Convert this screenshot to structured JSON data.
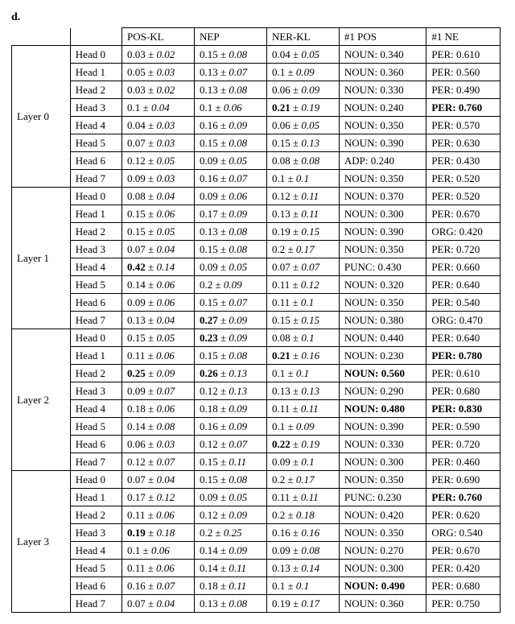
{
  "sectionLabel": "d.",
  "headers": {
    "poskl": "POS-KL",
    "nep": "NEP",
    "nerkl": "NER-KL",
    "pos1": "#1 POS",
    "ne1": "#1 NE"
  },
  "layers": [
    {
      "name": "Layer 0",
      "rows": [
        {
          "head": "Head 0",
          "poskl": {
            "m": "0.03",
            "s": "0.02",
            "mb": false
          },
          "nep": {
            "m": "0.15",
            "s": "0.08",
            "mb": false
          },
          "nerkl": {
            "m": "0.04",
            "s": "0.05",
            "mb": false
          },
          "pos": {
            "t": "NOUN",
            "v": "0.340",
            "b": false
          },
          "ne": {
            "t": "PER",
            "v": "0.610",
            "b": false
          }
        },
        {
          "head": "Head 1",
          "poskl": {
            "m": "0.05",
            "s": "0.03",
            "mb": false
          },
          "nep": {
            "m": "0.13",
            "s": "0.07",
            "mb": false
          },
          "nerkl": {
            "m": "0.1",
            "s": "0.09",
            "mb": false
          },
          "pos": {
            "t": "NOUN",
            "v": "0.360",
            "b": false
          },
          "ne": {
            "t": "PER",
            "v": "0.560",
            "b": false
          }
        },
        {
          "head": "Head 2",
          "poskl": {
            "m": "0.03",
            "s": "0.02",
            "mb": false
          },
          "nep": {
            "m": "0.13",
            "s": "0.08",
            "mb": false
          },
          "nerkl": {
            "m": "0.06",
            "s": "0.09",
            "mb": false
          },
          "pos": {
            "t": "NOUN",
            "v": "0.330",
            "b": false
          },
          "ne": {
            "t": "PER",
            "v": "0.490",
            "b": false
          }
        },
        {
          "head": "Head 3",
          "poskl": {
            "m": "0.1",
            "s": "0.04",
            "mb": false
          },
          "nep": {
            "m": "0.1",
            "s": "0.06",
            "mb": false
          },
          "nerkl": {
            "m": "0.21",
            "s": "0.19",
            "mb": true
          },
          "pos": {
            "t": "NOUN",
            "v": "0.240",
            "b": false
          },
          "ne": {
            "t": "PER",
            "v": "0.760",
            "b": true
          }
        },
        {
          "head": "Head 4",
          "poskl": {
            "m": "0.04",
            "s": "0.03",
            "mb": false
          },
          "nep": {
            "m": "0.16",
            "s": "0.09",
            "mb": false
          },
          "nerkl": {
            "m": "0.06",
            "s": "0.05",
            "mb": false
          },
          "pos": {
            "t": "NOUN",
            "v": "0.350",
            "b": false
          },
          "ne": {
            "t": "PER",
            "v": "0.570",
            "b": false
          }
        },
        {
          "head": "Head 5",
          "poskl": {
            "m": "0.07",
            "s": "0.03",
            "mb": false
          },
          "nep": {
            "m": "0.15",
            "s": "0.08",
            "mb": false
          },
          "nerkl": {
            "m": "0.15",
            "s": "0.13",
            "mb": false
          },
          "pos": {
            "t": "NOUN",
            "v": "0.390",
            "b": false
          },
          "ne": {
            "t": "PER",
            "v": "0.630",
            "b": false
          }
        },
        {
          "head": "Head 6",
          "poskl": {
            "m": "0.12",
            "s": "0.05",
            "mb": false
          },
          "nep": {
            "m": "0.09",
            "s": "0.05",
            "mb": false
          },
          "nerkl": {
            "m": "0.08",
            "s": "0.08",
            "mb": false
          },
          "pos": {
            "t": "ADP",
            "v": "0.240",
            "b": false
          },
          "ne": {
            "t": "PER",
            "v": "0.430",
            "b": false
          }
        },
        {
          "head": "Head 7",
          "poskl": {
            "m": "0.09",
            "s": "0.03",
            "mb": false
          },
          "nep": {
            "m": "0.16",
            "s": "0.07",
            "mb": false
          },
          "nerkl": {
            "m": "0.1",
            "s": "0.1",
            "mb": false
          },
          "pos": {
            "t": "NOUN",
            "v": "0.350",
            "b": false
          },
          "ne": {
            "t": "PER",
            "v": "0.520",
            "b": false
          }
        }
      ]
    },
    {
      "name": "Layer 1",
      "rows": [
        {
          "head": "Head 0",
          "poskl": {
            "m": "0.08",
            "s": "0.04",
            "mb": false
          },
          "nep": {
            "m": "0.09",
            "s": "0.06",
            "mb": false
          },
          "nerkl": {
            "m": "0.12",
            "s": "0.11",
            "mb": false
          },
          "pos": {
            "t": "NOUN",
            "v": "0.370",
            "b": false
          },
          "ne": {
            "t": "PER",
            "v": "0.520",
            "b": false
          }
        },
        {
          "head": "Head 1",
          "poskl": {
            "m": "0.15",
            "s": "0.06",
            "mb": false
          },
          "nep": {
            "m": "0.17",
            "s": "0.09",
            "mb": false
          },
          "nerkl": {
            "m": "0.13",
            "s": "0.11",
            "mb": false
          },
          "pos": {
            "t": "NOUN",
            "v": "0.300",
            "b": false
          },
          "ne": {
            "t": "PER",
            "v": "0.670",
            "b": false
          }
        },
        {
          "head": "Head 2",
          "poskl": {
            "m": "0.15",
            "s": "0.05",
            "mb": false
          },
          "nep": {
            "m": "0.13",
            "s": "0.08",
            "mb": false
          },
          "nerkl": {
            "m": "0.19",
            "s": "0.15",
            "mb": false
          },
          "pos": {
            "t": "NOUN",
            "v": "0.390",
            "b": false
          },
          "ne": {
            "t": "ORG",
            "v": "0.420",
            "b": false
          }
        },
        {
          "head": "Head 3",
          "poskl": {
            "m": "0.07",
            "s": "0.04",
            "mb": false
          },
          "nep": {
            "m": "0.15",
            "s": "0.08",
            "mb": false
          },
          "nerkl": {
            "m": "0.2",
            "s": "0.17",
            "mb": false
          },
          "pos": {
            "t": "NOUN",
            "v": "0.350",
            "b": false
          },
          "ne": {
            "t": "PER",
            "v": "0.720",
            "b": false
          }
        },
        {
          "head": "Head 4",
          "poskl": {
            "m": "0.42",
            "s": "0.14",
            "mb": true
          },
          "nep": {
            "m": "0.09",
            "s": "0.05",
            "mb": false
          },
          "nerkl": {
            "m": "0.07",
            "s": "0.07",
            "mb": false
          },
          "pos": {
            "t": "PUNC",
            "v": "0.430",
            "b": false
          },
          "ne": {
            "t": "PER",
            "v": "0.660",
            "b": false
          }
        },
        {
          "head": "Head 5",
          "poskl": {
            "m": "0.14",
            "s": "0.06",
            "mb": false
          },
          "nep": {
            "m": "0.2",
            "s": "0.09",
            "mb": false
          },
          "nerkl": {
            "m": "0.11",
            "s": "0.12",
            "mb": false
          },
          "pos": {
            "t": "NOUN",
            "v": "0.320",
            "b": false
          },
          "ne": {
            "t": "PER",
            "v": "0.640",
            "b": false
          }
        },
        {
          "head": "Head 6",
          "poskl": {
            "m": "0.09",
            "s": "0.06",
            "mb": false
          },
          "nep": {
            "m": "0.15",
            "s": "0.07",
            "mb": false
          },
          "nerkl": {
            "m": "0.11",
            "s": "0.1",
            "mb": false
          },
          "pos": {
            "t": "NOUN",
            "v": "0.350",
            "b": false
          },
          "ne": {
            "t": "PER",
            "v": "0.540",
            "b": false
          }
        },
        {
          "head": "Head 7",
          "poskl": {
            "m": "0.13",
            "s": "0.04",
            "mb": false
          },
          "nep": {
            "m": "0.27",
            "s": "0.09",
            "mb": true
          },
          "nerkl": {
            "m": "0.15",
            "s": "0.15",
            "mb": false
          },
          "pos": {
            "t": "NOUN",
            "v": "0.380",
            "b": false
          },
          "ne": {
            "t": "ORG",
            "v": "0.470",
            "b": false
          }
        }
      ]
    },
    {
      "name": "Layer 2",
      "rows": [
        {
          "head": "Head 0",
          "poskl": {
            "m": "0.15",
            "s": "0.05",
            "mb": false
          },
          "nep": {
            "m": "0.23",
            "s": "0.09",
            "mb": true
          },
          "nerkl": {
            "m": "0.08",
            "s": "0.1",
            "mb": false
          },
          "pos": {
            "t": "NOUN",
            "v": "0.440",
            "b": false
          },
          "ne": {
            "t": "PER",
            "v": "0.640",
            "b": false
          }
        },
        {
          "head": "Head 1",
          "poskl": {
            "m": "0.11",
            "s": "0.06",
            "mb": false
          },
          "nep": {
            "m": "0.15",
            "s": "0.08",
            "mb": false
          },
          "nerkl": {
            "m": "0.21",
            "s": "0.16",
            "mb": true
          },
          "pos": {
            "t": "NOUN",
            "v": "0.230",
            "b": false
          },
          "ne": {
            "t": "PER",
            "v": "0.780",
            "b": true
          }
        },
        {
          "head": "Head 2",
          "poskl": {
            "m": "0.25",
            "s": "0.09",
            "mb": true
          },
          "nep": {
            "m": "0.26",
            "s": "0.13",
            "mb": true
          },
          "nerkl": {
            "m": "0.1",
            "s": "0.1",
            "mb": false
          },
          "pos": {
            "t": "NOUN",
            "v": "0.560",
            "b": true
          },
          "ne": {
            "t": "PER",
            "v": "0.610",
            "b": false
          }
        },
        {
          "head": "Head 3",
          "poskl": {
            "m": "0.09",
            "s": "0.07",
            "mb": false
          },
          "nep": {
            "m": "0.12",
            "s": "0.13",
            "mb": false
          },
          "nerkl": {
            "m": "0.13",
            "s": "0.13",
            "mb": false
          },
          "pos": {
            "t": "NOUN",
            "v": "0.290",
            "b": false
          },
          "ne": {
            "t": "PER",
            "v": "0.680",
            "b": false
          }
        },
        {
          "head": "Head 4",
          "poskl": {
            "m": "0.18",
            "s": "0.06",
            "mb": false
          },
          "nep": {
            "m": "0.18",
            "s": "0.09",
            "mb": false
          },
          "nerkl": {
            "m": "0.11",
            "s": "0.11",
            "mb": false
          },
          "pos": {
            "t": "NOUN",
            "v": "0.480",
            "b": true
          },
          "ne": {
            "t": "PER",
            "v": "0.830",
            "b": true
          }
        },
        {
          "head": "Head 5",
          "poskl": {
            "m": "0.14",
            "s": "0.08",
            "mb": false
          },
          "nep": {
            "m": "0.16",
            "s": "0.09",
            "mb": false
          },
          "nerkl": {
            "m": "0.1",
            "s": "0.09",
            "mb": false
          },
          "pos": {
            "t": "NOUN",
            "v": "0.390",
            "b": false
          },
          "ne": {
            "t": "PER",
            "v": "0.590",
            "b": false
          }
        },
        {
          "head": "Head 6",
          "poskl": {
            "m": "0.06",
            "s": "0.03",
            "mb": false
          },
          "nep": {
            "m": "0.12",
            "s": "0.07",
            "mb": false
          },
          "nerkl": {
            "m": "0.22",
            "s": "0.19",
            "mb": true
          },
          "pos": {
            "t": "NOUN",
            "v": "0.330",
            "b": false
          },
          "ne": {
            "t": "PER",
            "v": "0.720",
            "b": false
          }
        },
        {
          "head": "Head 7",
          "poskl": {
            "m": "0.12",
            "s": "0.07",
            "mb": false
          },
          "nep": {
            "m": "0.15",
            "s": "0.11",
            "mb": false
          },
          "nerkl": {
            "m": "0.09",
            "s": "0.1",
            "mb": false
          },
          "pos": {
            "t": "NOUN",
            "v": "0.300",
            "b": false
          },
          "ne": {
            "t": "PER",
            "v": "0.460",
            "b": false
          }
        }
      ]
    },
    {
      "name": "Layer 3",
      "rows": [
        {
          "head": "Head 0",
          "poskl": {
            "m": "0.07",
            "s": "0.04",
            "mb": false
          },
          "nep": {
            "m": "0.15",
            "s": "0.08",
            "mb": false
          },
          "nerkl": {
            "m": "0.2",
            "s": "0.17",
            "mb": false
          },
          "pos": {
            "t": "NOUN",
            "v": "0.350",
            "b": false
          },
          "ne": {
            "t": "PER",
            "v": "0.690",
            "b": false
          }
        },
        {
          "head": "Head 1",
          "poskl": {
            "m": "0.17",
            "s": "0.12",
            "mb": false
          },
          "nep": {
            "m": "0.09",
            "s": "0.05",
            "mb": false
          },
          "nerkl": {
            "m": "0.11",
            "s": "0.11",
            "mb": false
          },
          "pos": {
            "t": "PUNC",
            "v": "0.230",
            "b": false
          },
          "ne": {
            "t": "PER",
            "v": "0.760",
            "b": true
          }
        },
        {
          "head": "Head 2",
          "poskl": {
            "m": "0.11",
            "s": "0.06",
            "mb": false
          },
          "nep": {
            "m": "0.12",
            "s": "0.09",
            "mb": false
          },
          "nerkl": {
            "m": "0.2",
            "s": "0.18",
            "mb": false
          },
          "pos": {
            "t": "NOUN",
            "v": "0.420",
            "b": false
          },
          "ne": {
            "t": "PER",
            "v": "0.620",
            "b": false
          }
        },
        {
          "head": "Head 3",
          "poskl": {
            "m": "0.19",
            "s": "0.18",
            "mb": true
          },
          "nep": {
            "m": "0.2",
            "s": "0.25",
            "mb": false
          },
          "nerkl": {
            "m": "0.16",
            "s": "0.16",
            "mb": false
          },
          "pos": {
            "t": "NOUN",
            "v": "0.350",
            "b": false
          },
          "ne": {
            "t": "ORG",
            "v": "0.540",
            "b": false
          }
        },
        {
          "head": "Head 4",
          "poskl": {
            "m": "0.1",
            "s": "0.06",
            "mb": false
          },
          "nep": {
            "m": "0.14",
            "s": "0.09",
            "mb": false
          },
          "nerkl": {
            "m": "0.09",
            "s": "0.08",
            "mb": false
          },
          "pos": {
            "t": "NOUN",
            "v": "0.270",
            "b": false
          },
          "ne": {
            "t": "PER",
            "v": "0.670",
            "b": false
          }
        },
        {
          "head": "Head 5",
          "poskl": {
            "m": "0.11",
            "s": "0.06",
            "mb": false
          },
          "nep": {
            "m": "0.14",
            "s": "0.11",
            "mb": false
          },
          "nerkl": {
            "m": "0.13",
            "s": "0.14",
            "mb": false
          },
          "pos": {
            "t": "NOUN",
            "v": "0.300",
            "b": false
          },
          "ne": {
            "t": "PER",
            "v": "0.420",
            "b": false
          }
        },
        {
          "head": "Head 6",
          "poskl": {
            "m": "0.16",
            "s": "0.07",
            "mb": false
          },
          "nep": {
            "m": "0.18",
            "s": "0.11",
            "mb": false
          },
          "nerkl": {
            "m": "0.1",
            "s": "0.1",
            "mb": false
          },
          "pos": {
            "t": "NOUN",
            "v": "0.490",
            "b": true
          },
          "ne": {
            "t": "PER",
            "v": "0.680",
            "b": false
          }
        },
        {
          "head": "Head 7",
          "poskl": {
            "m": "0.07",
            "s": "0.04",
            "mb": false
          },
          "nep": {
            "m": "0.13",
            "s": "0.08",
            "mb": false
          },
          "nerkl": {
            "m": "0.19",
            "s": "0.17",
            "mb": false
          },
          "pos": {
            "t": "NOUN",
            "v": "0.360",
            "b": false
          },
          "ne": {
            "t": "PER",
            "v": "0.750",
            "b": false
          }
        }
      ]
    }
  ]
}
